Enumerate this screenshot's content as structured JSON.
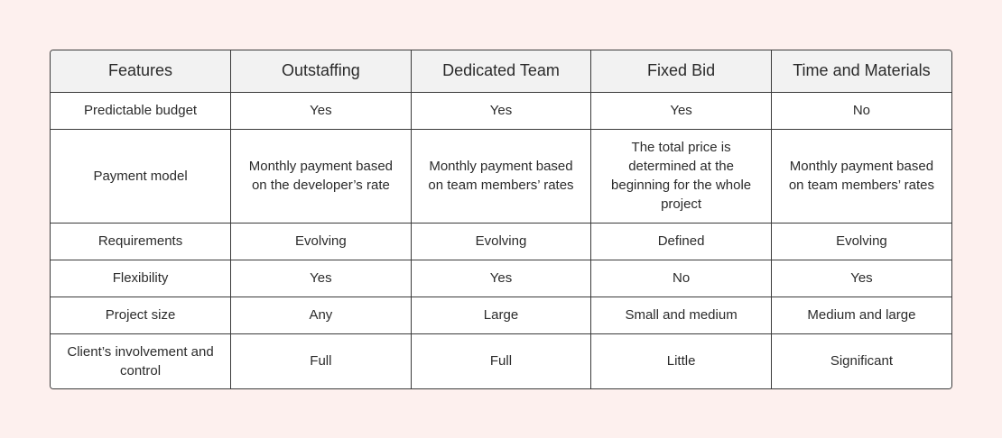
{
  "table": {
    "headers": [
      "Features",
      "Outstaffing",
      "Dedicated Team",
      "Fixed Bid",
      "Time and Materials"
    ],
    "rows": [
      {
        "feature": "Predictable budget",
        "cells": [
          "Yes",
          "Yes",
          "Yes",
          "No"
        ]
      },
      {
        "feature": "Payment model",
        "cells": [
          "Monthly payment based on the developer’s rate",
          "Monthly payment based on team members’ rates",
          "The total price is determined at the beginning for the whole project",
          "Monthly payment based on team members’ rates"
        ]
      },
      {
        "feature": "Requirements",
        "cells": [
          "Evolving",
          "Evolving",
          "Defined",
          "Evolving"
        ]
      },
      {
        "feature": "Flexibility",
        "cells": [
          "Yes",
          "Yes",
          "No",
          "Yes"
        ]
      },
      {
        "feature": "Project size",
        "cells": [
          "Any",
          "Large",
          "Small and medium",
          "Medium and large"
        ]
      },
      {
        "feature": "Client’s involvement and control",
        "cells": [
          "Full",
          "Full",
          "Little",
          "Significant"
        ]
      }
    ]
  },
  "colors": {
    "background": "#fdf0ee",
    "header_background": "#f2f2f2",
    "border": "#3a3a3a",
    "text": "#2b2b2b"
  }
}
